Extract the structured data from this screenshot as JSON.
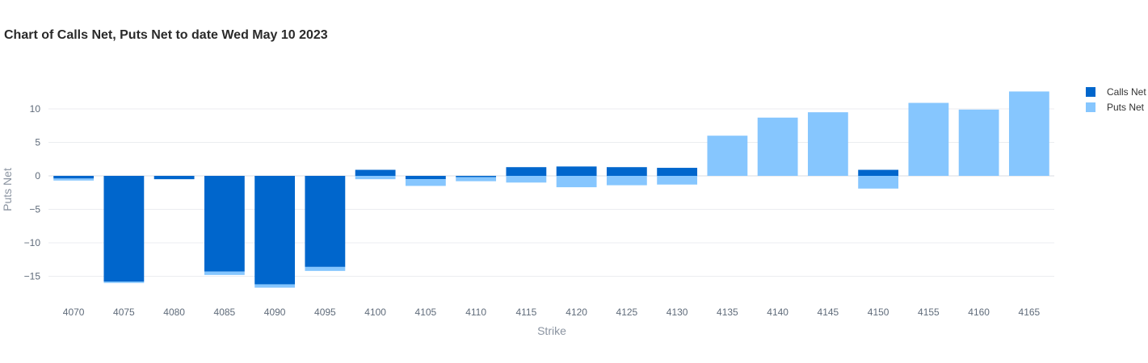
{
  "chart_data": {
    "type": "bar",
    "mode": "relative",
    "title": "Chart of Calls Net, Puts Net to date Wed May 10 2023",
    "xlabel": "Strike",
    "ylabel": "Puts Net",
    "categories": [
      "4070",
      "4075",
      "4080",
      "4085",
      "4090",
      "4095",
      "4100",
      "4105",
      "4110",
      "4115",
      "4120",
      "4125",
      "4130",
      "4135",
      "4140",
      "4145",
      "4150",
      "4155",
      "4160",
      "4165"
    ],
    "ylim": [
      -18.5,
      14.5
    ],
    "yticks": [
      -15,
      -10,
      -5,
      0,
      5,
      10
    ],
    "grid": true,
    "legend_position": "top-right",
    "series": [
      {
        "name": "Calls Net",
        "color": "#0066cc",
        "values": [
          -0.4,
          -15.8,
          -0.5,
          -14.3,
          -16.2,
          -13.6,
          0.9,
          -0.5,
          -0.2,
          1.3,
          1.4,
          1.3,
          1.2,
          0,
          0,
          0,
          0.9,
          0,
          0,
          0
        ]
      },
      {
        "name": "Puts Net",
        "color": "#86c6fe",
        "values": [
          -0.3,
          -0.2,
          0,
          -0.5,
          -0.5,
          -0.6,
          -0.5,
          -1.0,
          -0.6,
          -1.0,
          -1.7,
          -1.4,
          -1.3,
          6.0,
          8.7,
          9.5,
          -1.9,
          10.9,
          9.9,
          12.6
        ]
      }
    ]
  }
}
